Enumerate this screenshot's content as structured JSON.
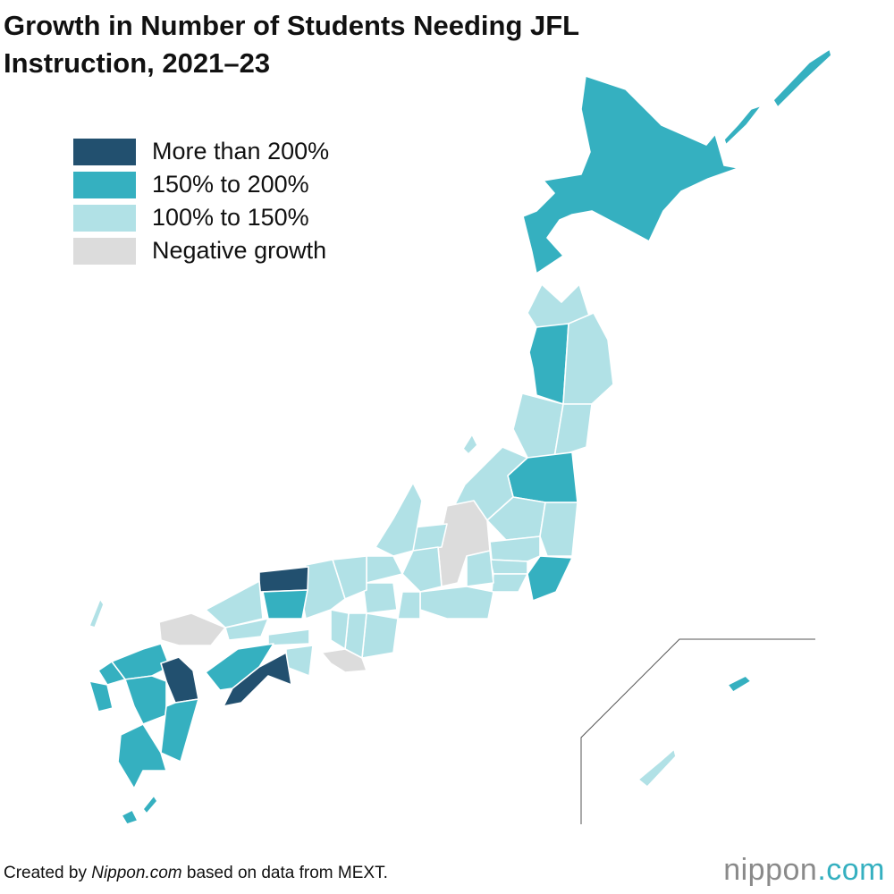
{
  "header": {
    "title": [
      "Growth in Number of Students Needing JFL",
      "Instruction, 2021–23"
    ]
  },
  "legend": [
    {
      "label": "More than 200%",
      "color": "#22506f"
    },
    {
      "label": "150% to 200%",
      "color": "#35b0c0"
    },
    {
      "label": "100% to 150%",
      "color": "#b1e1e6"
    },
    {
      "label": "Negative growth",
      "color": "#dcdcdc"
    }
  ],
  "footer": {
    "source": [
      "Created by ",
      "Nippon.com",
      " based on data from MEXT."
    ]
  },
  "logo": [
    "nippon",
    ".com"
  ]
}
